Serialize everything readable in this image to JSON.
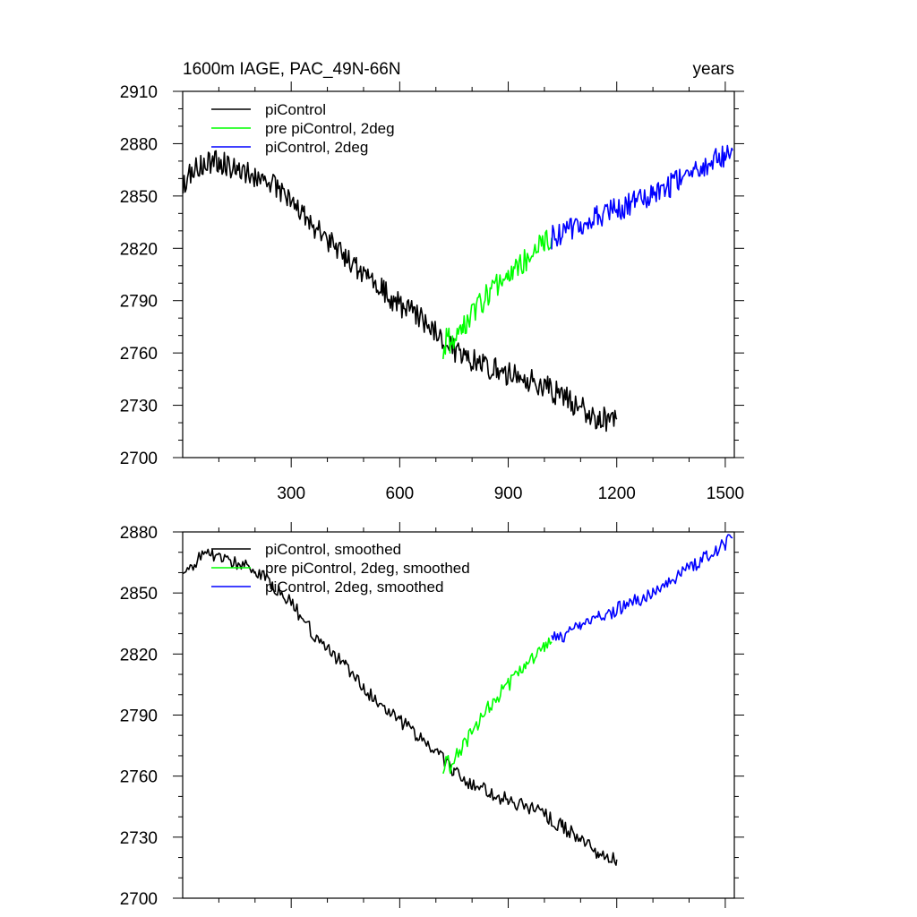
{
  "chart_data": [
    {
      "type": "line",
      "title": "1600m IAGE, PAC_49N-66N",
      "right_label": "years",
      "xlabel": "",
      "ylabel": "",
      "xlim": [
        0,
        1525
      ],
      "ylim": [
        2700,
        2910
      ],
      "x_ticks": [
        300,
        600,
        900,
        1200,
        1500
      ],
      "x_tick_labels": [
        "300",
        "600",
        "900",
        "1200",
        "1500"
      ],
      "y_ticks": [
        2700,
        2730,
        2760,
        2790,
        2820,
        2850,
        2880,
        2910
      ],
      "y_tick_labels": [
        "2700",
        "2730",
        "2760",
        "2790",
        "2820",
        "2850",
        "2880",
        "2910"
      ],
      "grid": false,
      "legend_position": "top-left",
      "series": [
        {
          "name": "piControl",
          "color": "#000000",
          "x": [
            1,
            50,
            100,
            150,
            200,
            250,
            300,
            350,
            400,
            450,
            500,
            550,
            600,
            650,
            700,
            725,
            750,
            800,
            850,
            900,
            950,
            1000,
            1050,
            1100,
            1150,
            1200
          ],
          "values": [
            2857,
            2869,
            2870,
            2866,
            2862,
            2856,
            2847,
            2836,
            2824,
            2816,
            2805,
            2796,
            2788,
            2781,
            2772,
            2768,
            2762,
            2756,
            2752,
            2748,
            2745,
            2741,
            2735,
            2729,
            2722,
            2722
          ]
        },
        {
          "name": "pre piControl, 2deg",
          "color": "#00ff00",
          "x": [
            720,
            730,
            740,
            750,
            775,
            800,
            850,
            900,
            950,
            1000,
            1020
          ],
          "values": [
            2760,
            2770,
            2766,
            2770,
            2775,
            2783,
            2795,
            2805,
            2814,
            2824,
            2826
          ]
        },
        {
          "name": "piControl, 2deg",
          "color": "#0000ff",
          "x": [
            1020,
            1050,
            1100,
            1150,
            1200,
            1250,
            1300,
            1350,
            1400,
            1450,
            1500,
            1520
          ],
          "values": [
            2826,
            2829,
            2834,
            2838,
            2842,
            2846,
            2850,
            2856,
            2862,
            2868,
            2874,
            2876
          ]
        }
      ]
    },
    {
      "type": "line",
      "title": "",
      "xlabel": "",
      "ylabel": "",
      "xlim": [
        0,
        1525
      ],
      "ylim": [
        2700,
        2880
      ],
      "x_ticks": [
        300,
        600,
        900,
        1200,
        1500
      ],
      "y_ticks": [
        2700,
        2730,
        2760,
        2790,
        2820,
        2850,
        2880
      ],
      "y_tick_labels": [
        "2700",
        "2730",
        "2760",
        "2790",
        "2820",
        "2850",
        "2880"
      ],
      "grid": false,
      "legend_position": "top-left",
      "series": [
        {
          "name": "piControl, smoothed",
          "color": "#000000",
          "x": [
            1,
            50,
            100,
            150,
            200,
            250,
            300,
            350,
            400,
            450,
            500,
            550,
            600,
            650,
            700,
            725,
            750,
            800,
            850,
            900,
            950,
            1000,
            1050,
            1100,
            1150,
            1200
          ],
          "values": [
            2857,
            2868,
            2869,
            2865,
            2861,
            2854,
            2845,
            2833,
            2822,
            2814,
            2803,
            2795,
            2787,
            2780,
            2771,
            2767,
            2762,
            2756,
            2752,
            2748,
            2745,
            2741,
            2735,
            2729,
            2722,
            2719
          ]
        },
        {
          "name": "pre piControl, 2deg, smoothed",
          "color": "#00ff00",
          "x": [
            720,
            730,
            740,
            750,
            775,
            800,
            850,
            900,
            950,
            1000,
            1020
          ],
          "values": [
            2762,
            2769,
            2764,
            2769,
            2774,
            2782,
            2795,
            2805,
            2814,
            2824,
            2826
          ]
        },
        {
          "name": "piControl, 2deg, smoothed",
          "color": "#0000ff",
          "x": [
            1020,
            1050,
            1100,
            1150,
            1200,
            1250,
            1300,
            1350,
            1400,
            1450,
            1500,
            1520
          ],
          "values": [
            2827,
            2829,
            2834,
            2838,
            2842,
            2846,
            2850,
            2856,
            2862,
            2868,
            2874,
            2877
          ]
        }
      ]
    }
  ]
}
